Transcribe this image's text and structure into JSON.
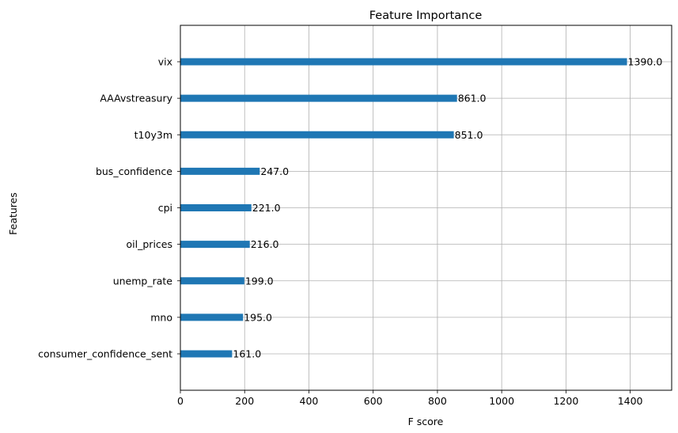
{
  "chart_data": {
    "type": "bar",
    "orientation": "horizontal",
    "title": "Feature Importance",
    "xlabel": "F score",
    "ylabel": "Features",
    "categories": [
      "vix",
      "AAAvstreasury",
      "t10y3m",
      "bus_confidence",
      "cpi",
      "oil_prices",
      "unemp_rate",
      "mno",
      "consumer_confidence_sent"
    ],
    "values": [
      1390,
      861,
      851,
      247,
      221,
      216,
      199,
      195,
      161
    ],
    "value_labels": [
      "1390.0",
      "861.0",
      "851.0",
      "247.0",
      "221.0",
      "216.0",
      "199.0",
      "195.0",
      "161.0"
    ],
    "xlim": [
      0,
      1529
    ],
    "xticks": [
      0,
      200,
      400,
      600,
      800,
      1000,
      1200,
      1400
    ],
    "xtick_labels": [
      "0",
      "200",
      "400",
      "600",
      "800",
      "1000",
      "1200",
      "1400"
    ],
    "grid": true,
    "bar_color": "#1f77b4"
  }
}
